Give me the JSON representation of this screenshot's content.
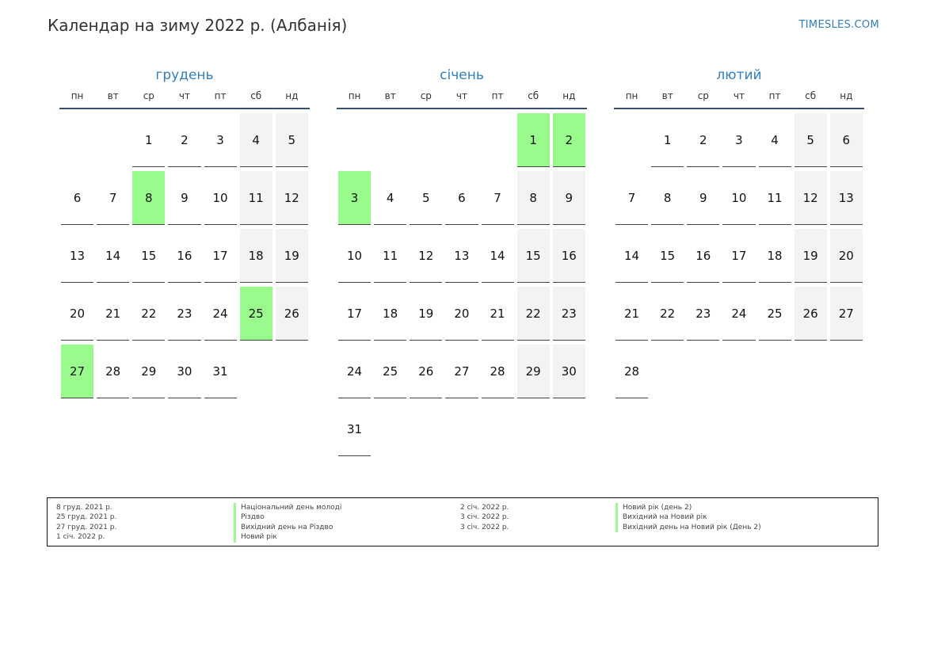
{
  "header": {
    "title": "Календар на зиму 2022 р. (Албанія)",
    "site": "TIMESLES.COM"
  },
  "weekday_labels": [
    "пн",
    "вт",
    "ср",
    "чт",
    "пт",
    "сб",
    "нд"
  ],
  "colors": {
    "accent": "#2f7fc1",
    "holiday": "#98fb8b",
    "weekend": "#f3f3f3"
  },
  "months": [
    {
      "name": "грудень",
      "start_offset": 2,
      "days": 31,
      "holidays": [
        8,
        25,
        27
      ]
    },
    {
      "name": "січень",
      "start_offset": 5,
      "days": 31,
      "holidays": [
        1,
        2,
        3
      ]
    },
    {
      "name": "лютий",
      "start_offset": 1,
      "days": 28,
      "holidays": []
    }
  ],
  "legend": [
    {
      "date": "8 груд. 2021 р.",
      "name": "Національний день молоді"
    },
    {
      "date": "25 груд. 2021 р.",
      "name": "Різдво"
    },
    {
      "date": "27 груд. 2021 р.",
      "name": "Вихідний день на Різдво"
    },
    {
      "date": "1 січ. 2022 р.",
      "name": "Новий рік"
    },
    {
      "date": "2 січ. 2022 р.",
      "name": "Новий рік (день 2)"
    },
    {
      "date": "3 січ. 2022 р.",
      "name": "Вихідний на Новий рік"
    },
    {
      "date": "3 січ. 2022 р.",
      "name": "Вихідний день на Новий рік (День 2)"
    }
  ]
}
